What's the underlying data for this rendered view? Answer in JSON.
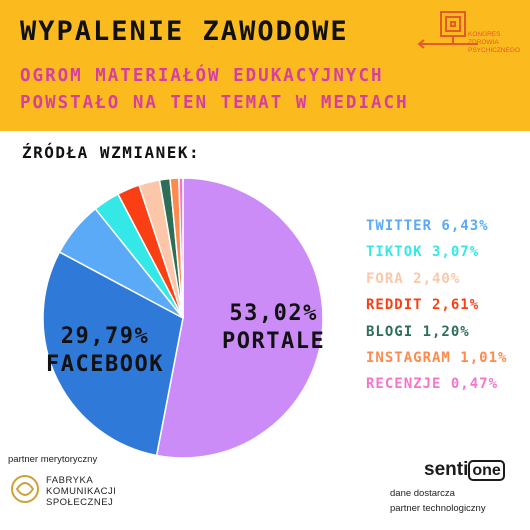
{
  "header": {
    "title": "WYPALENIE ZAWODOWE",
    "subtitle_line1": "OGROM MATERIAŁÓW EDUKACYJNYCH",
    "subtitle_line2": "POWSTAŁO NA TEN TEMAT W MEDIACH",
    "logo_lines": [
      "KONGRES",
      "ZDROWIA",
      "PSYCHICZNEGO"
    ]
  },
  "sources_heading": "ŹRÓDŁA WZMIANEK:",
  "chart_data": {
    "type": "pie",
    "slices": [
      {
        "name": "PORTALE",
        "value": 53.02,
        "label": "53,02%",
        "color": "#cb8cf7"
      },
      {
        "name": "FACEBOOK",
        "value": 29.79,
        "label": "29,79%",
        "color": "#2f7ad9"
      },
      {
        "name": "TWITTER",
        "value": 6.43,
        "label": "6,43%",
        "color": "#5aaaf7"
      },
      {
        "name": "TIKTOK",
        "value": 3.07,
        "label": "3,07%",
        "color": "#33e8e6"
      },
      {
        "name": "REDDIT",
        "value": 2.61,
        "label": "2,61%",
        "color": "#fa3f15"
      },
      {
        "name": "FORA",
        "value": 2.4,
        "label": "2,40%",
        "color": "#fcc7a9"
      },
      {
        "name": "BLOGI",
        "value": 1.2,
        "label": "1,20%",
        "color": "#2e6e57"
      },
      {
        "name": "INSTAGRAM",
        "value": 1.01,
        "label": "1,01%",
        "color": "#ff8a4d"
      },
      {
        "name": "RECENZJE",
        "value": 0.47,
        "label": "0,47%",
        "color": "#f576c9"
      }
    ],
    "big_labels": [
      {
        "percent": "53,02%",
        "name": "PORTALE"
      },
      {
        "percent": "29,79%",
        "name": "FACEBOOK"
      }
    ],
    "legend": [
      {
        "text": "TWITTER 6,43%",
        "color": "#5aaaf7"
      },
      {
        "text": "TIKTOK 3,07%",
        "color": "#33e8e6"
      },
      {
        "text": "FORA 2,40%",
        "color": "#fcc7a9"
      },
      {
        "text": "REDDIT 2,61%",
        "color": "#fa3f15"
      },
      {
        "text": "BLOGI 1,20%",
        "color": "#2e6e57"
      },
      {
        "text": "INSTAGRAM 1,01%",
        "color": "#ff8a4d"
      },
      {
        "text": "RECENZJE 0,47%",
        "color": "#f576c9"
      }
    ]
  },
  "footer": {
    "partner_label": "partner merytoryczny",
    "fks_lines": [
      "FABRYKA",
      "KOMUNIKACJI",
      "SPOŁECZNEJ"
    ],
    "senti_left": "senti",
    "senti_right": "one",
    "provider_line1": "dane dostarcza",
    "provider_line2": "partner technologiczny"
  }
}
